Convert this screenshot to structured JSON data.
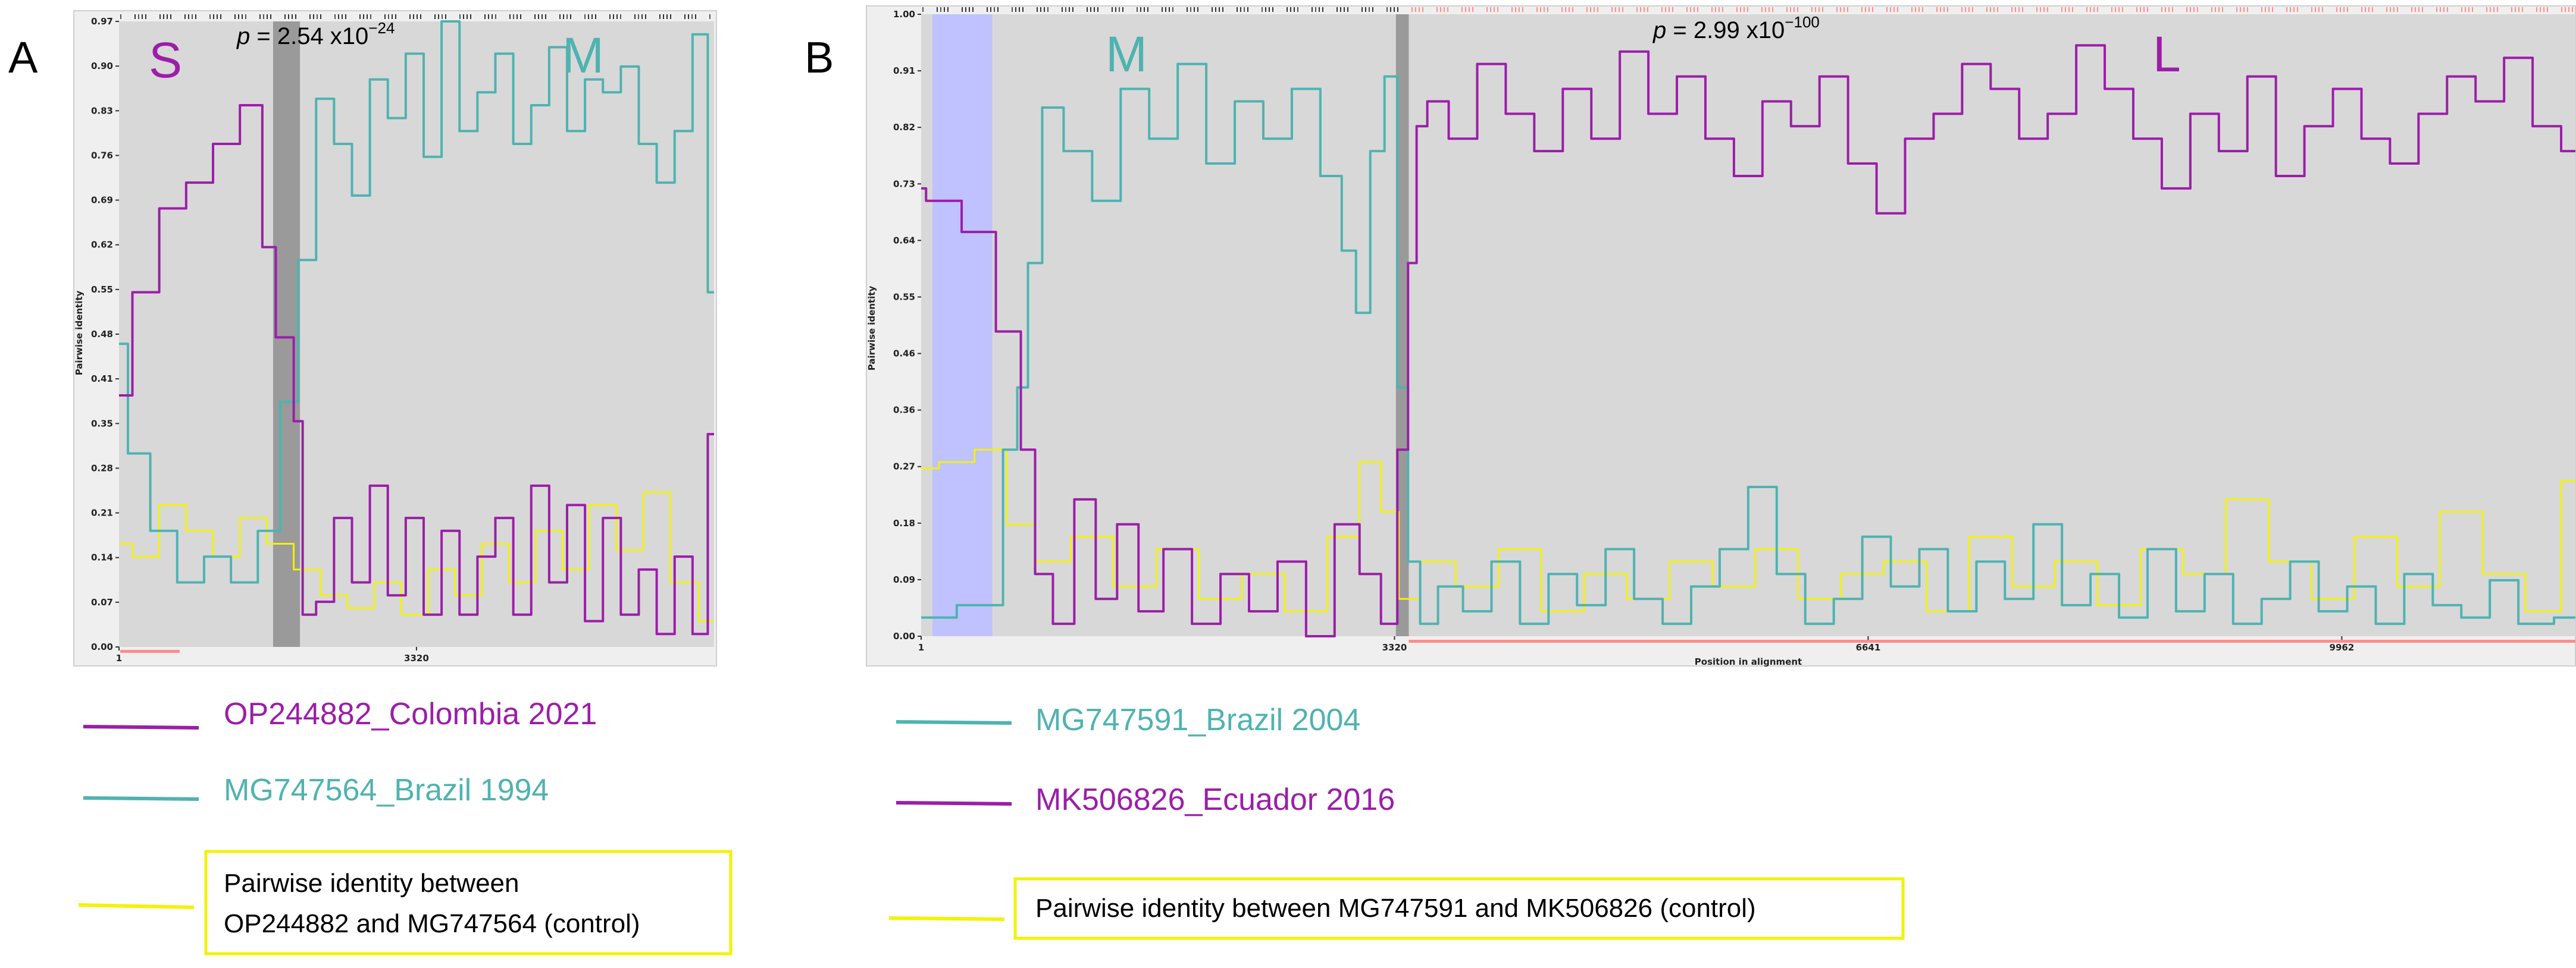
{
  "colors": {
    "magenta": "#9b1ea8",
    "teal": "#4fb3b0",
    "yellow": "#f2f20a",
    "plot_bg": "#d8d8d8",
    "frame_bg": "#efefef",
    "breakpoint": "#8f8f8f",
    "blue_band": "#bfc2ff",
    "pink": "#ff8c8c"
  },
  "panel_a": {
    "letter": "A",
    "region_left": "S",
    "region_right": "M",
    "p_prefix": "p",
    "p_value": " = 2.54 x10",
    "p_exponent": "−24",
    "ylabel": "Pairwise identity",
    "legend": {
      "series1": "OP244882_Colombia 2021",
      "series2": "MG747564_Brazil 1994",
      "control_line1": "Pairwise identity between",
      "control_line2": "OP244882 and MG747564 (control)"
    }
  },
  "panel_b": {
    "letter": "B",
    "region_left": "M",
    "region_right": "L",
    "p_prefix": "p",
    "p_value": " = 2.99 x10",
    "p_exponent": "−100",
    "ylabel": "Pairwise identity",
    "xlabel": "Position in alignment",
    "legend": {
      "series1": "MG747591_Brazil 2004",
      "series2": "MK506826_Ecuador 2016",
      "control_line1": "Pairwise identity between MG747591 and MK506826 (control)"
    }
  },
  "chart_data": [
    {
      "type": "line",
      "panel": "A",
      "ylabel": "Pairwise identity",
      "xlabel": "",
      "xlim": [
        1,
        6640
      ],
      "ylim": [
        0.0,
        0.97
      ],
      "y_ticks": [
        "0.97",
        "0.90",
        "0.83",
        "0.76",
        "0.69",
        "0.62",
        "0.55",
        "0.48",
        "0.41",
        "0.35",
        "0.28",
        "0.21",
        "0.14",
        "0.07",
        "0.00"
      ],
      "x_ticks": [
        {
          "value": 1,
          "label": "1"
        },
        {
          "value": 3320,
          "label": "3320"
        }
      ],
      "breakpoint": [
        1720,
        2020
      ],
      "series": [
        {
          "name": "OP244882_Colombia 2021",
          "color": "magenta",
          "x": [
            1,
            300,
            600,
            900,
            1200,
            1500,
            1700,
            1800,
            1900,
            2000,
            2100,
            2300,
            2500,
            2700,
            2900,
            3100,
            3300,
            3500,
            3700,
            3900,
            4100,
            4300,
            4500,
            4700,
            4900,
            5100,
            5300,
            5500,
            5700,
            5900,
            6100,
            6300,
            6500,
            6640
          ],
          "y": [
            0.39,
            0.55,
            0.68,
            0.72,
            0.78,
            0.84,
            0.62,
            0.48,
            0.48,
            0.35,
            0.05,
            0.07,
            0.2,
            0.1,
            0.25,
            0.08,
            0.2,
            0.05,
            0.18,
            0.05,
            0.14,
            0.2,
            0.05,
            0.25,
            0.1,
            0.22,
            0.04,
            0.2,
            0.05,
            0.12,
            0.02,
            0.14,
            0.02,
            0.33
          ]
        },
        {
          "name": "MG747564_Brazil 1994",
          "color": "teal",
          "x": [
            1,
            200,
            500,
            800,
            1100,
            1400,
            1700,
            1900,
            2100,
            2300,
            2500,
            2700,
            2900,
            3100,
            3300,
            3500,
            3700,
            3900,
            4100,
            4300,
            4500,
            4700,
            4900,
            5100,
            5300,
            5500,
            5700,
            5900,
            6100,
            6300,
            6500,
            6640
          ],
          "y": [
            0.47,
            0.3,
            0.18,
            0.1,
            0.14,
            0.1,
            0.18,
            0.38,
            0.6,
            0.85,
            0.78,
            0.7,
            0.88,
            0.82,
            0.92,
            0.76,
            0.97,
            0.8,
            0.86,
            0.92,
            0.78,
            0.84,
            0.93,
            0.8,
            0.88,
            0.86,
            0.9,
            0.78,
            0.72,
            0.8,
            0.95,
            0.55
          ]
        },
        {
          "name": "",
          "color": "yellow",
          "x": [
            1,
            300,
            600,
            900,
            1200,
            1500,
            1800,
            2100,
            2400,
            2700,
            3000,
            3300,
            3600,
            3900,
            4200,
            4500,
            4800,
            5100,
            5400,
            5700,
            6000,
            6300,
            6640
          ],
          "y": [
            0.16,
            0.14,
            0.22,
            0.18,
            0.14,
            0.2,
            0.16,
            0.12,
            0.08,
            0.06,
            0.1,
            0.05,
            0.12,
            0.08,
            0.16,
            0.1,
            0.18,
            0.12,
            0.22,
            0.15,
            0.24,
            0.1,
            0.04
          ]
        }
      ]
    },
    {
      "type": "line",
      "panel": "B",
      "ylabel": "Pairwise identity",
      "xlabel": "Position in alignment",
      "xlim": [
        1,
        11600
      ],
      "ylim": [
        0.0,
        1.0
      ],
      "y_ticks": [
        "1.00",
        "0.91",
        "0.82",
        "0.73",
        "0.64",
        "0.55",
        "0.46",
        "0.36",
        "0.27",
        "0.18",
        "0.09",
        "0.00"
      ],
      "x_ticks": [
        {
          "value": 1,
          "label": "1"
        },
        {
          "value": 3320,
          "label": "3320"
        },
        {
          "value": 6641,
          "label": "6641"
        },
        {
          "value": 9962,
          "label": "9962"
        }
      ],
      "blue_band": [
        80,
        500
      ],
      "breakpoint": [
        3330,
        3420
      ],
      "series": [
        {
          "name": "MG747591_Brazil 2004",
          "color": "teal",
          "x": [
            1,
            500,
            650,
            700,
            800,
            900,
            1100,
            1300,
            1500,
            1700,
            1900,
            2100,
            2300,
            2500,
            2700,
            2900,
            3000,
            3100,
            3200,
            3300,
            3380,
            3450,
            3550,
            3700,
            3900,
            4100,
            4300,
            4500,
            4700,
            4900,
            5100,
            5300,
            5500,
            5700,
            5900,
            6100,
            6300,
            6500,
            6700,
            6900,
            7100,
            7300,
            7500,
            7700,
            7900,
            8100,
            8300,
            8500,
            8700,
            8900,
            9100,
            9300,
            9500,
            9700,
            9900,
            10100,
            10300,
            10500,
            10700,
            10900,
            11100,
            11300,
            11600
          ],
          "y": [
            0.03,
            0.05,
            0.3,
            0.4,
            0.6,
            0.85,
            0.78,
            0.7,
            0.88,
            0.8,
            0.92,
            0.76,
            0.86,
            0.8,
            0.88,
            0.74,
            0.62,
            0.52,
            0.78,
            0.9,
            0.4,
            0.12,
            0.02,
            0.08,
            0.04,
            0.12,
            0.02,
            0.1,
            0.05,
            0.14,
            0.06,
            0.02,
            0.08,
            0.14,
            0.24,
            0.1,
            0.02,
            0.06,
            0.16,
            0.08,
            0.14,
            0.04,
            0.12,
            0.06,
            0.18,
            0.05,
            0.1,
            0.03,
            0.14,
            0.04,
            0.1,
            0.02,
            0.06,
            0.12,
            0.04,
            0.08,
            0.02,
            0.1,
            0.05,
            0.03,
            0.09,
            0.02,
            0.03
          ]
        },
        {
          "name": "MK506826_Ecuador 2016",
          "color": "magenta",
          "x": [
            1,
            70,
            500,
            550,
            650,
            750,
            850,
            1000,
            1150,
            1300,
            1450,
            1600,
            1800,
            2000,
            2200,
            2400,
            2600,
            2800,
            3000,
            3150,
            3300,
            3380,
            3450,
            3500,
            3600,
            3800,
            4000,
            4200,
            4400,
            4600,
            4800,
            5000,
            5200,
            5400,
            5600,
            5800,
            6000,
            6200,
            6400,
            6600,
            6800,
            7000,
            7200,
            7400,
            7600,
            7800,
            8000,
            8200,
            8400,
            8600,
            8800,
            9000,
            9200,
            9400,
            9600,
            9800,
            10000,
            10200,
            10400,
            10600,
            10800,
            11000,
            11200,
            11400,
            11600
          ],
          "y": [
            0.72,
            0.7,
            0.65,
            0.49,
            0.49,
            0.3,
            0.1,
            0.02,
            0.22,
            0.06,
            0.18,
            0.04,
            0.14,
            0.02,
            0.1,
            0.04,
            0.12,
            0.0,
            0.18,
            0.1,
            0.02,
            0.3,
            0.6,
            0.82,
            0.86,
            0.8,
            0.92,
            0.84,
            0.78,
            0.88,
            0.8,
            0.94,
            0.84,
            0.9,
            0.8,
            0.74,
            0.86,
            0.82,
            0.9,
            0.76,
            0.68,
            0.8,
            0.84,
            0.92,
            0.88,
            0.8,
            0.84,
            0.95,
            0.88,
            0.8,
            0.72,
            0.84,
            0.78,
            0.9,
            0.74,
            0.82,
            0.88,
            0.8,
            0.76,
            0.84,
            0.9,
            0.86,
            0.93,
            0.82,
            0.78
          ]
        },
        {
          "name": "",
          "color": "yellow",
          "x": [
            1,
            250,
            500,
            700,
            900,
            1200,
            1500,
            1800,
            2100,
            2400,
            2700,
            3000,
            3150,
            3300,
            3400,
            3600,
            3900,
            4200,
            4500,
            4800,
            5100,
            5400,
            5700,
            6000,
            6300,
            6600,
            6900,
            7200,
            7500,
            7800,
            8100,
            8400,
            8700,
            9000,
            9300,
            9600,
            9900,
            10200,
            10500,
            10800,
            11100,
            11400,
            11600
          ],
          "y": [
            0.27,
            0.28,
            0.3,
            0.18,
            0.12,
            0.16,
            0.08,
            0.14,
            0.06,
            0.1,
            0.04,
            0.16,
            0.28,
            0.2,
            0.06,
            0.12,
            0.08,
            0.14,
            0.04,
            0.1,
            0.06,
            0.12,
            0.08,
            0.14,
            0.06,
            0.1,
            0.12,
            0.04,
            0.16,
            0.08,
            0.12,
            0.05,
            0.14,
            0.1,
            0.22,
            0.12,
            0.06,
            0.16,
            0.08,
            0.2,
            0.1,
            0.04,
            0.25
          ]
        }
      ]
    }
  ]
}
